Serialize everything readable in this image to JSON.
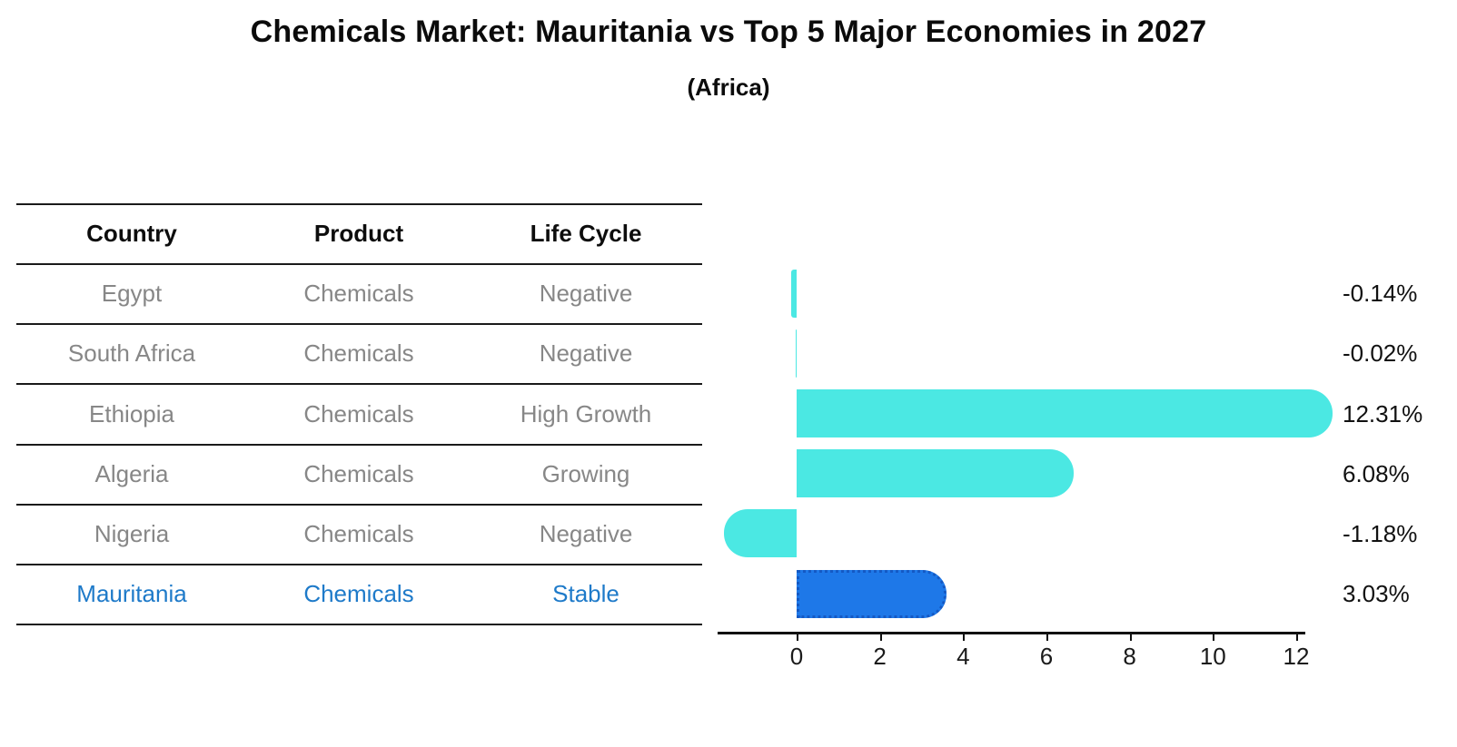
{
  "chart_data": {
    "type": "bar",
    "orientation": "horizontal",
    "title": "Chemicals Market: Mauritania vs Top 5 Major Economies in 2027",
    "subtitle": "(Africa)",
    "table_columns": [
      "Country",
      "Product",
      "Life Cycle"
    ],
    "rows": [
      {
        "country": "Egypt",
        "product": "Chemicals",
        "life_cycle": "Negative",
        "value": -0.14,
        "label": "-0.14%",
        "highlight": false
      },
      {
        "country": "South Africa",
        "product": "Chemicals",
        "life_cycle": "Negative",
        "value": -0.02,
        "label": "-0.02%",
        "highlight": false
      },
      {
        "country": "Ethiopia",
        "product": "Chemicals",
        "life_cycle": "High Growth",
        "value": 12.31,
        "label": "12.31%",
        "highlight": false
      },
      {
        "country": "Algeria",
        "product": "Chemicals",
        "life_cycle": "Growing",
        "value": 6.08,
        "label": "6.08%",
        "highlight": false
      },
      {
        "country": "Nigeria",
        "product": "Chemicals",
        "life_cycle": "Negative",
        "value": -1.18,
        "label": "-1.18%",
        "highlight": false
      },
      {
        "country": "Mauritania",
        "product": "Chemicals",
        "life_cycle": "Stable",
        "value": 3.03,
        "label": "3.03%",
        "highlight": true
      }
    ],
    "x_ticks": [
      0,
      2,
      4,
      6,
      8,
      10,
      12
    ],
    "xlim": [
      -1.9,
      12.9
    ],
    "grid": false,
    "legend": false,
    "colors": {
      "bar": "#4BE8E3",
      "highlight_bar": "#1E78E8",
      "highlight_bar_border": "#1459C4",
      "row_text": "#878787",
      "highlight_text": "#1E7AC9",
      "header_text": "#0d0d0d",
      "value_text": "#111111",
      "axis": "#111111",
      "table_line": "#1a1a1a"
    }
  }
}
